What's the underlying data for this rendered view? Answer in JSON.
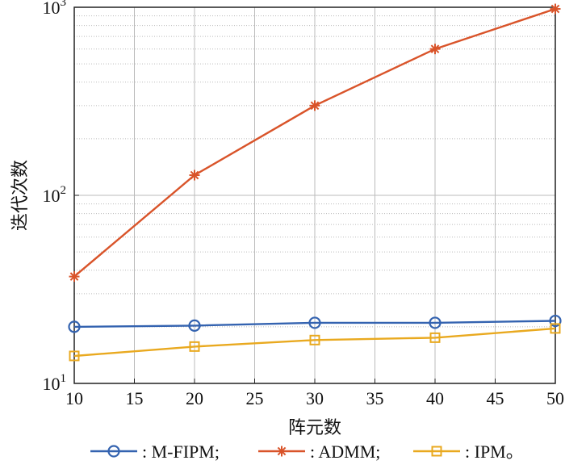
{
  "chart_data": {
    "type": "line",
    "xlabel": "阵元数",
    "ylabel": "迭代次数",
    "x": [
      10,
      20,
      30,
      40,
      50
    ],
    "xlim": [
      10,
      50
    ],
    "xticks": [
      "10",
      "15",
      "20",
      "25",
      "30",
      "35",
      "40",
      "45",
      "50"
    ],
    "yscale": "log",
    "ylim": [
      10,
      1000
    ],
    "grid": true,
    "legend_position": "bottom",
    "series": [
      {
        "name": ": M-FIPM;",
        "values": [
          20,
          20.3,
          21,
          21,
          21.5
        ],
        "color": "#3463b0",
        "marker": "circle"
      },
      {
        "name": ": ADMM;",
        "values": [
          37,
          128,
          300,
          600,
          980
        ],
        "color": "#d9542a",
        "marker": "star"
      },
      {
        "name": ": IPM。",
        "values": [
          14,
          15.7,
          17,
          17.5,
          19.6
        ],
        "color": "#e9a91f",
        "marker": "square"
      }
    ]
  }
}
